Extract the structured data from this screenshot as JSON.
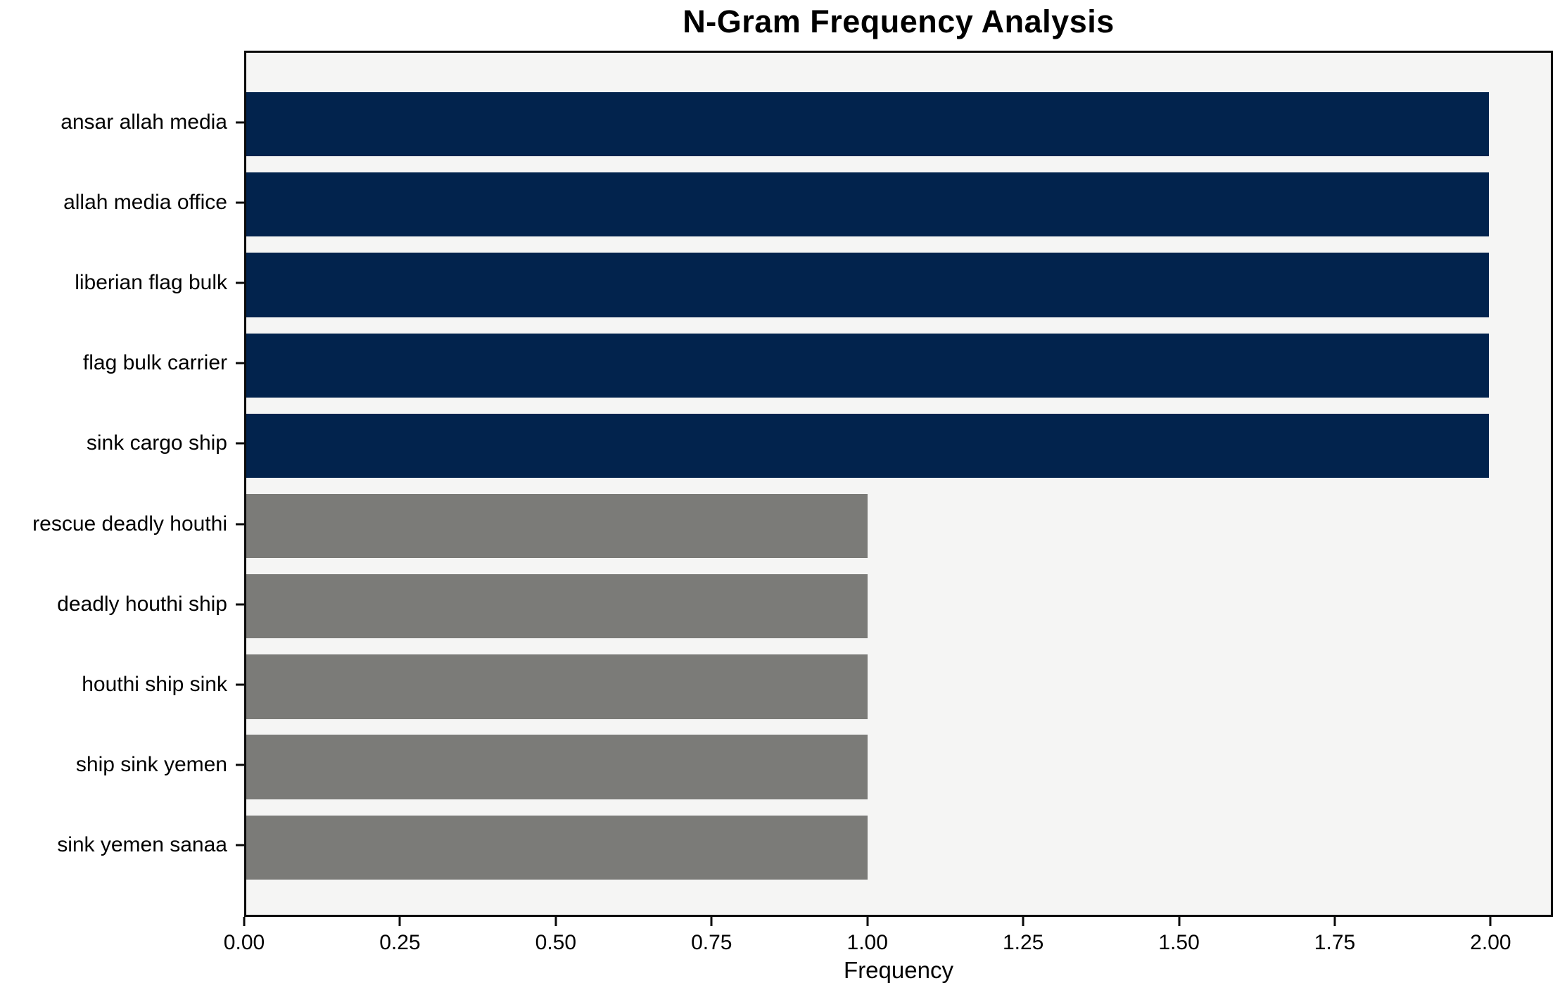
{
  "chart_data": {
    "type": "bar",
    "orientation": "horizontal",
    "title": "N-Gram Frequency Analysis",
    "xlabel": "Frequency",
    "ylabel": "",
    "categories": [
      "ansar allah media",
      "allah media office",
      "liberian flag bulk",
      "flag bulk carrier",
      "sink cargo ship",
      "rescue deadly houthi",
      "deadly houthi ship",
      "houthi ship sink",
      "ship sink yemen",
      "sink yemen sanaa"
    ],
    "values": [
      2,
      2,
      2,
      2,
      2,
      1,
      1,
      1,
      1,
      1
    ],
    "bar_colors": [
      "#02234d",
      "#02234d",
      "#02234d",
      "#02234d",
      "#02234d",
      "#7b7b78",
      "#7b7b78",
      "#7b7b78",
      "#7b7b78",
      "#7b7b78"
    ],
    "x_ticks": [
      "0.00",
      "0.25",
      "0.50",
      "0.75",
      "1.00",
      "1.25",
      "1.50",
      "1.75",
      "2.00"
    ],
    "x_tick_values": [
      0,
      0.25,
      0.5,
      0.75,
      1.0,
      1.25,
      1.5,
      1.75,
      2.0
    ],
    "xlim": [
      0,
      2.1
    ],
    "grid": false,
    "legend": null,
    "colors": {
      "high_frequency_bar": "#02234d",
      "low_frequency_bar": "#7b7b78",
      "plot_background": "#f5f5f4",
      "figure_background": "#ffffff",
      "spine": "#0a0a0a",
      "text": "#000000"
    }
  }
}
